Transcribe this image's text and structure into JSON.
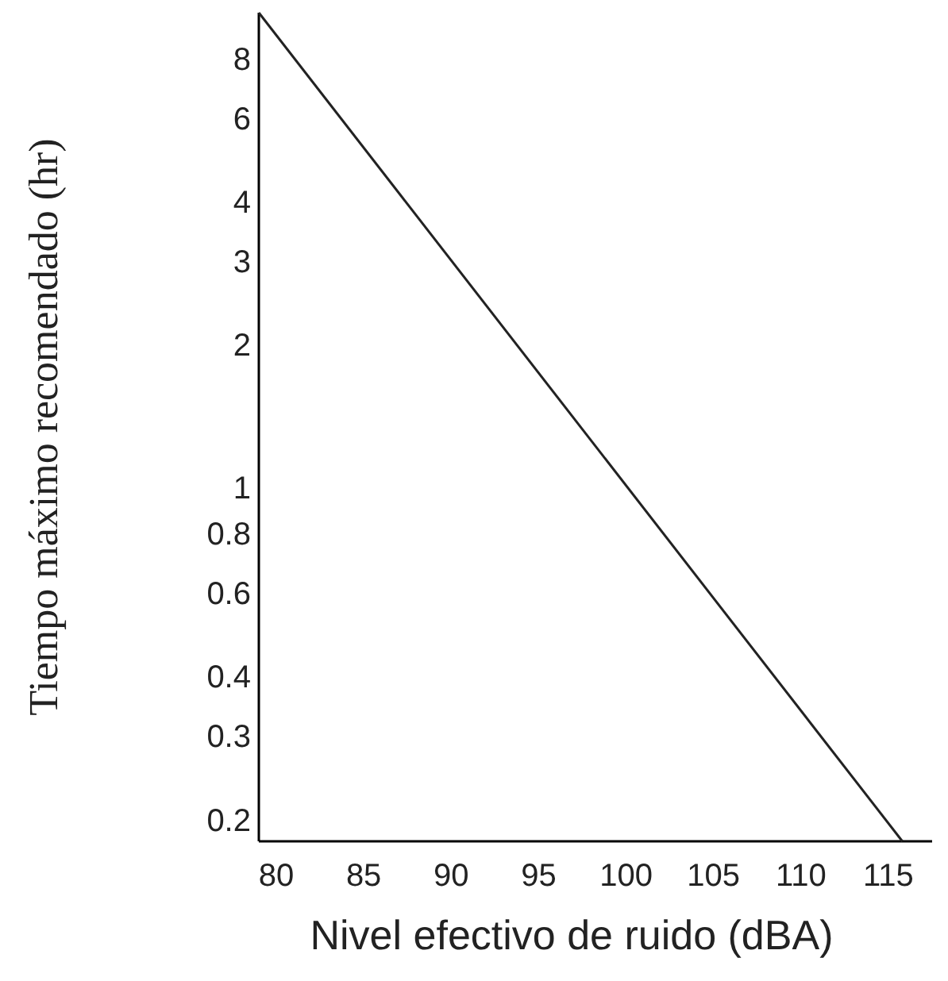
{
  "chart_data": {
    "type": "line",
    "xlabel": "Nivel efectivo de ruido (dBA)",
    "ylabel": "Tiempo máximo recomendado (hr)",
    "x": [
      79,
      115.8
    ],
    "series": [
      {
        "color": "#222222",
        "values": [
          10,
          0.18
        ]
      }
    ],
    "xlim": [
      79,
      117.5
    ],
    "xticks": [
      80,
      85,
      90,
      95,
      100,
      105,
      110,
      115
    ],
    "ylim": [
      0.18,
      10
    ],
    "yticks": [
      8,
      6,
      4,
      3,
      2,
      1,
      0.8,
      0.6,
      0.4,
      0.3,
      0.2
    ],
    "log": "y",
    "grid": false,
    "marker": "none",
    "line_style": "solid"
  }
}
